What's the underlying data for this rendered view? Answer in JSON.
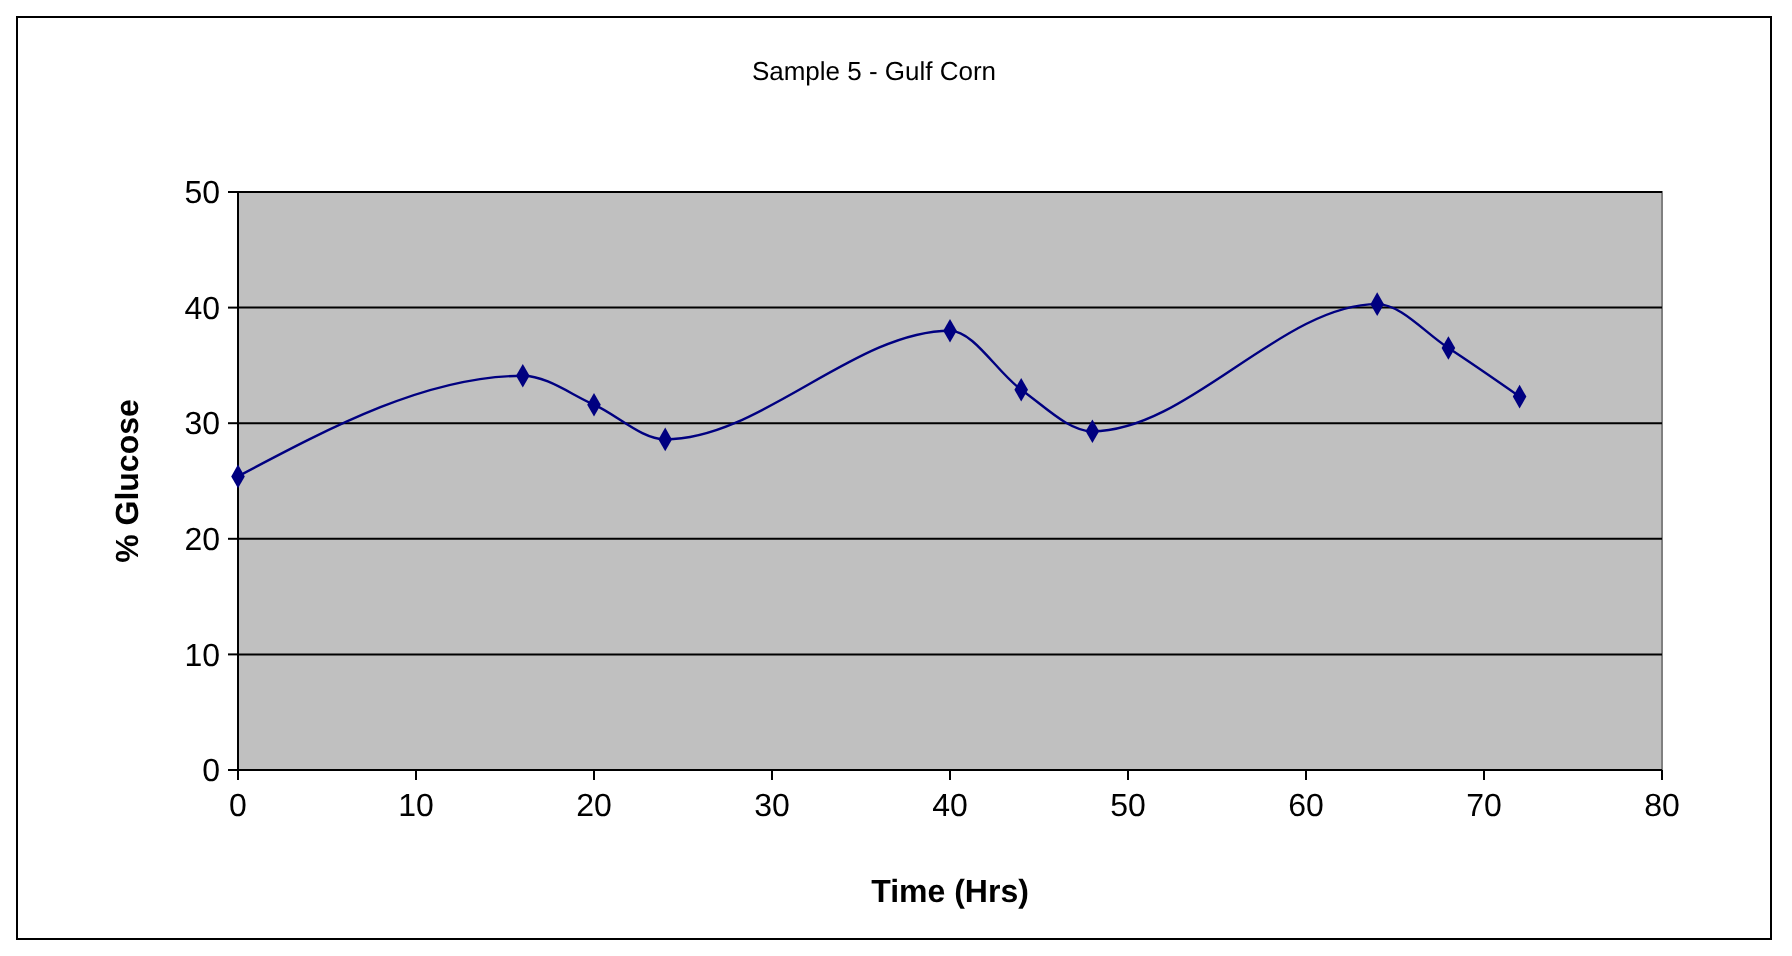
{
  "chart_data": {
    "type": "line",
    "title": "Sample 5 - Gulf Corn",
    "xlabel": "Time (Hrs)",
    "ylabel": "% Glucose",
    "x": [
      0,
      16,
      20,
      24,
      40,
      44,
      48,
      64,
      68,
      72
    ],
    "series": [
      {
        "color": "#000080",
        "values": [
          25.4,
          34.1,
          31.6,
          28.6,
          38.0,
          32.9,
          29.3,
          40.3,
          36.5,
          32.3
        ]
      }
    ],
    "xlim": [
      0,
      80
    ],
    "xticks": [
      0,
      10,
      20,
      30,
      40,
      50,
      60,
      70,
      80
    ],
    "ylim": [
      0,
      50
    ],
    "yticks": [
      0,
      10,
      20,
      30,
      40,
      50
    ],
    "grid": "y",
    "marker": "diamond",
    "line_style": "solid"
  }
}
